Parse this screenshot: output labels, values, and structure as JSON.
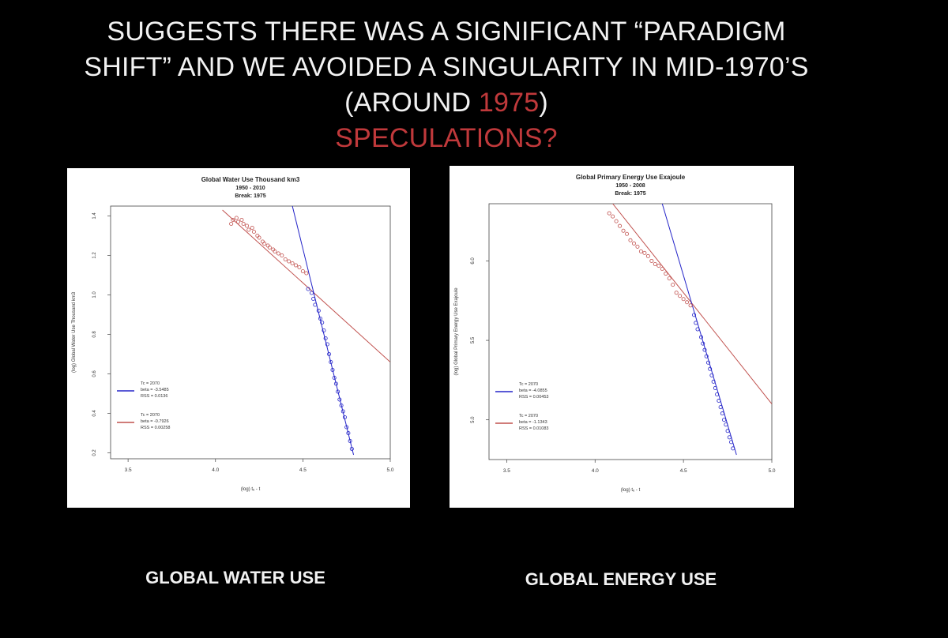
{
  "slide": {
    "title_line1": "SUGGESTS THERE WAS A SIGNIFICANT “PARADIGM",
    "title_line2": "SHIFT” AND WE AVOIDED A SINGULARITY IN MID-1970’S",
    "title_line3_pre": "(AROUND ",
    "title_line3_year": "1975",
    "title_line3_post": ")",
    "title_line4": "SPECULATIONS?",
    "caption_left": "GLOBAL WATER USE",
    "caption_right": "GLOBAL ENERGY USE",
    "colors": {
      "background": "#000000",
      "text": "#f2f2f2",
      "highlight": "#c0393b",
      "series_blue": "#2424c8",
      "series_red": "#c0504d"
    }
  },
  "chart_data": [
    {
      "type": "scatter",
      "title": "Global Water Use  Thousand km3",
      "subtitle1": "1950 - 2010",
      "subtitle2": "Break: 1975",
      "xlabel": "(log) tₑ - t",
      "ylabel": "(log) Global Water Use Thousand km3",
      "xlim": [
        3.4,
        5.0
      ],
      "ylim": [
        0.17,
        1.45
      ],
      "xticks": [
        "3.5",
        "4.0",
        "4.5",
        "5.0"
      ],
      "yticks": [
        "0.2",
        "0.4",
        "0.6",
        "0.8",
        "1.0",
        "1.2",
        "1.4"
      ],
      "legend": [
        {
          "color": "blue",
          "lines": [
            "Tc = 2070",
            "beta = -3.5485",
            "RSS = 0.0136"
          ]
        },
        {
          "color": "red",
          "lines": [
            "Tc = 2070",
            "beta = -0.7926",
            "RSS = 0.00258"
          ]
        }
      ],
      "series": [
        {
          "color": "red",
          "x": [
            4.09,
            4.1,
            4.12,
            4.13,
            4.15,
            4.16,
            4.18,
            4.19,
            4.21,
            4.22,
            4.24,
            4.25,
            4.27,
            4.28,
            4.3,
            4.31,
            4.33,
            4.34,
            4.36,
            4.38,
            4.4,
            4.42,
            4.44,
            4.46,
            4.48,
            4.5,
            4.52
          ],
          "y": [
            1.36,
            1.38,
            1.39,
            1.37,
            1.38,
            1.36,
            1.35,
            1.33,
            1.34,
            1.32,
            1.3,
            1.29,
            1.27,
            1.26,
            1.25,
            1.24,
            1.23,
            1.22,
            1.21,
            1.2,
            1.18,
            1.17,
            1.16,
            1.15,
            1.14,
            1.12,
            1.11
          ]
        },
        {
          "color": "blue",
          "x": [
            4.53,
            4.55,
            4.56,
            4.57,
            4.59,
            4.6,
            4.61,
            4.62,
            4.63,
            4.64,
            4.65,
            4.66,
            4.67,
            4.68,
            4.69,
            4.7,
            4.71,
            4.72,
            4.73,
            4.74,
            4.75,
            4.76,
            4.77,
            4.78
          ],
          "y": [
            1.03,
            1.01,
            0.98,
            0.95,
            0.92,
            0.88,
            0.86,
            0.82,
            0.78,
            0.75,
            0.7,
            0.66,
            0.62,
            0.58,
            0.55,
            0.51,
            0.47,
            0.44,
            0.41,
            0.38,
            0.33,
            0.3,
            0.26,
            0.22
          ]
        }
      ],
      "fit_lines": [
        {
          "color": "red",
          "x": [
            4.04,
            5.0
          ],
          "y": [
            1.43,
            0.66
          ]
        },
        {
          "color": "blue",
          "x": [
            4.44,
            4.79
          ],
          "y": [
            1.45,
            0.19
          ]
        }
      ]
    },
    {
      "type": "scatter",
      "title": "Global Primary Energy Use  Exajoule",
      "subtitle1": "1950 - 2008",
      "subtitle2": "Break: 1975",
      "xlabel": "(log) tₑ - t",
      "ylabel": "(log) Global Primary Energy Use  Exajoule",
      "xlim": [
        3.4,
        5.0
      ],
      "ylim": [
        4.75,
        6.36
      ],
      "xticks": [
        "3.5",
        "4.0",
        "4.5",
        "5.0"
      ],
      "yticks": [
        "5.0",
        "5.5",
        "6.0"
      ],
      "legend": [
        {
          "color": "blue",
          "lines": [
            "Tc = 2070",
            "beta = -4.0855",
            "RSS = 0.00453"
          ]
        },
        {
          "color": "red",
          "lines": [
            "Tc = 2070",
            "beta = -1.1343",
            "RSS = 0.01083"
          ]
        }
      ],
      "series": [
        {
          "color": "red",
          "x": [
            4.08,
            4.1,
            4.12,
            4.14,
            4.16,
            4.18,
            4.2,
            4.22,
            4.24,
            4.26,
            4.28,
            4.3,
            4.32,
            4.34,
            4.36,
            4.38,
            4.4,
            4.42,
            4.44,
            4.46,
            4.48,
            4.5,
            4.52,
            4.54
          ],
          "y": [
            6.3,
            6.28,
            6.25,
            6.22,
            6.19,
            6.17,
            6.13,
            6.11,
            6.09,
            6.06,
            6.05,
            6.03,
            6.0,
            5.98,
            5.97,
            5.95,
            5.92,
            5.89,
            5.85,
            5.8,
            5.78,
            5.76,
            5.74,
            5.72
          ]
        },
        {
          "color": "blue",
          "x": [
            4.56,
            4.57,
            4.58,
            4.6,
            4.61,
            4.62,
            4.63,
            4.64,
            4.65,
            4.66,
            4.67,
            4.68,
            4.69,
            4.7,
            4.71,
            4.72,
            4.73,
            4.74,
            4.75,
            4.76,
            4.77,
            4.78
          ],
          "y": [
            5.66,
            5.61,
            5.57,
            5.52,
            5.48,
            5.44,
            5.4,
            5.36,
            5.32,
            5.28,
            5.24,
            5.2,
            5.16,
            5.12,
            5.08,
            5.04,
            5.0,
            4.97,
            4.93,
            4.89,
            4.86,
            4.82
          ]
        }
      ],
      "fit_lines": [
        {
          "color": "red",
          "x": [
            4.1,
            5.0
          ],
          "y": [
            6.36,
            5.1
          ]
        },
        {
          "color": "blue",
          "x": [
            4.38,
            4.8
          ],
          "y": [
            6.36,
            4.78
          ]
        }
      ]
    }
  ]
}
